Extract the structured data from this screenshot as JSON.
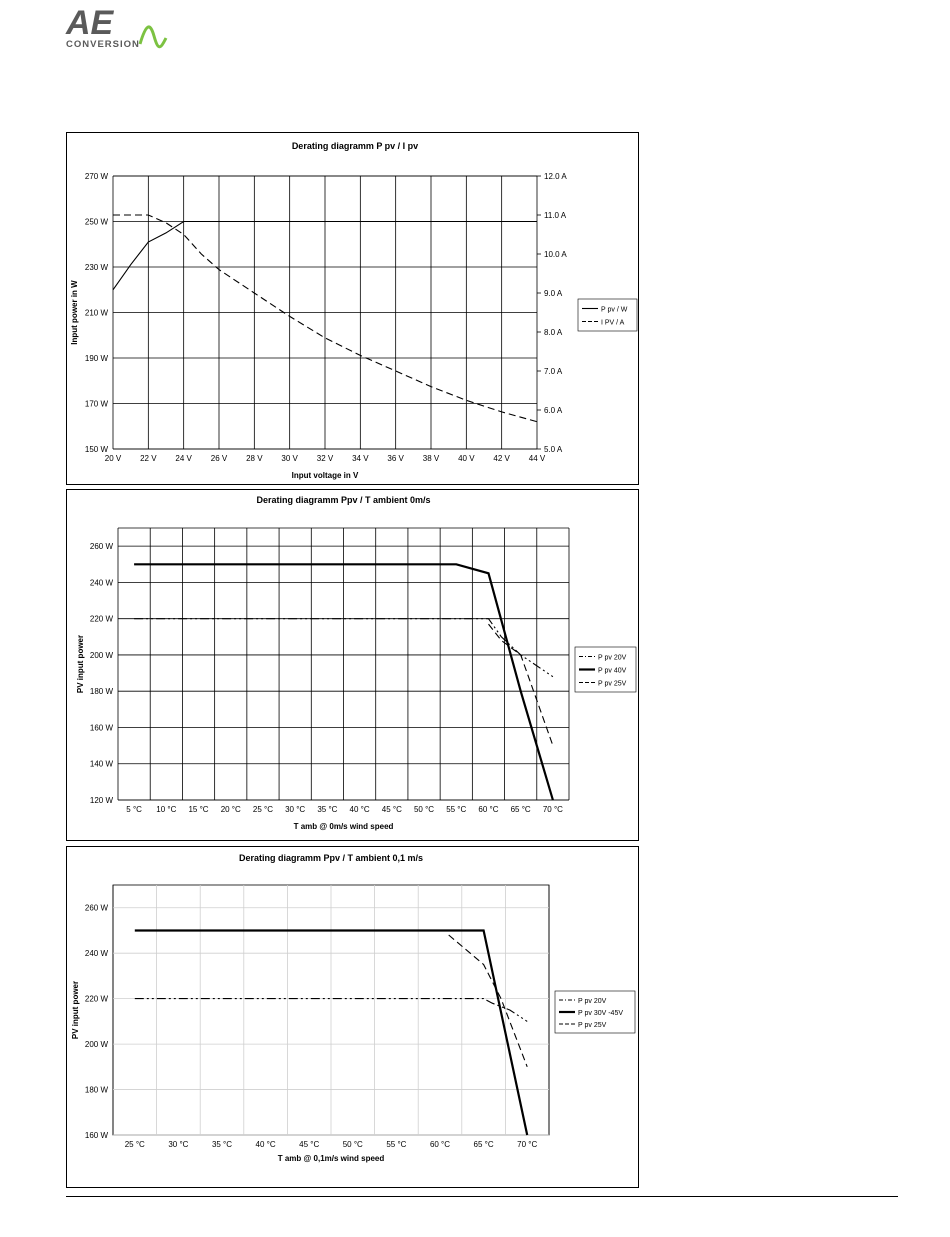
{
  "header": {
    "logo_letters": "AE",
    "logo_subtitle": "Conversion",
    "logo_colors": {
      "text": "#5a5a5a",
      "wave": "#7cc242"
    }
  },
  "chart_data": [
    {
      "type": "line",
      "title": "Derating diagramm P pv / I pv",
      "xlabel": "Input voltage in V",
      "ylabel": "Input power in W",
      "ylabel_right": "",
      "x_ticks": [
        "20 V",
        "22 V",
        "24 V",
        "26 V",
        "28 V",
        "30 V",
        "32 V",
        "34 V",
        "36 V",
        "38 V",
        "40 V",
        "42 V",
        "44 V"
      ],
      "xlim": [
        20,
        44
      ],
      "y_ticks": [
        "150 W",
        "170 W",
        "190 W",
        "210 W",
        "230 W",
        "250 W",
        "270 W"
      ],
      "ylim": [
        150,
        270
      ],
      "y2_ticks": [
        "5.0 A",
        "6.0 A",
        "7.0 A",
        "8.0 A",
        "9.0 A",
        "10.0 A",
        "11.0 A",
        "12.0 A"
      ],
      "y2lim": [
        5,
        12
      ],
      "grid": true,
      "legend_position": "right",
      "series": [
        {
          "name": "P pv / W",
          "axis": "left",
          "style": "solid",
          "x": [
            20,
            21,
            22,
            23,
            24,
            25,
            26,
            28,
            30,
            32,
            34,
            36,
            38,
            40,
            42,
            44
          ],
          "y": [
            220,
            231,
            241,
            245,
            250,
            250,
            250,
            250,
            250,
            250,
            250,
            250,
            250,
            250,
            250,
            250
          ]
        },
        {
          "name": "I PV / A",
          "axis": "right",
          "style": "dashed",
          "x": [
            20,
            21,
            22,
            23,
            24,
            25,
            26,
            28,
            30,
            32,
            34,
            36,
            38,
            40,
            42,
            44
          ],
          "y": [
            11.0,
            11.0,
            11.0,
            10.8,
            10.5,
            10.0,
            9.6,
            9.0,
            8.4,
            7.85,
            7.4,
            7.0,
            6.6,
            6.25,
            5.95,
            5.7
          ]
        }
      ]
    },
    {
      "type": "line",
      "title": "Derating diagramm Ppv / T ambient 0m/s",
      "xlabel": "T amb  @  0m/s wind speed",
      "ylabel": "PV input power",
      "x_ticks": [
        "5 °C",
        "10 °C",
        "15 °C",
        "20 °C",
        "25 °C",
        "30 °C",
        "35 °C",
        "40 °C",
        "45 °C",
        "50 °C",
        "55 °C",
        "60 °C",
        "65 °C",
        "70 °C"
      ],
      "xlim": [
        2.5,
        72.5
      ],
      "y_ticks": [
        "120 W",
        "140 W",
        "160 W",
        "180 W",
        "200 W",
        "220 W",
        "240 W",
        "260 W"
      ],
      "ylim": [
        120,
        270
      ],
      "grid": true,
      "legend_position": "right",
      "series": [
        {
          "name": "P pv 20V",
          "style": "dashdotdot",
          "x": [
            5,
            60,
            62,
            65,
            70
          ],
          "y": [
            220,
            220,
            210,
            200,
            188
          ]
        },
        {
          "name": "P pv 40V",
          "style": "thick",
          "x": [
            5,
            55,
            60,
            65,
            70
          ],
          "y": [
            250,
            250,
            245,
            180,
            120
          ]
        },
        {
          "name": "P pv 25V",
          "style": "dashed",
          "x": [
            60,
            62,
            65,
            70
          ],
          "y": [
            217,
            208,
            200,
            150
          ]
        }
      ]
    },
    {
      "type": "line",
      "title": "Derating diagramm Ppv / T ambient 0,1 m/s",
      "xlabel": "T amb  @  0,1m/s wind speed",
      "ylabel": "PV input power",
      "x_ticks": [
        "25 °C",
        "30 °C",
        "35 °C",
        "40 °C",
        "45 °C",
        "50 °C",
        "55 °C",
        "60 °C",
        "65 °C",
        "70 °C"
      ],
      "xlim": [
        22.5,
        72.5
      ],
      "y_ticks": [
        "160 W",
        "180 W",
        "200 W",
        "220 W",
        "240 W",
        "260 W"
      ],
      "ylim": [
        160,
        270
      ],
      "grid": true,
      "legend_position": "right",
      "series": [
        {
          "name": "P pv 20V",
          "style": "dashdotdot",
          "x": [
            25,
            65,
            66,
            68,
            70
          ],
          "y": [
            220,
            220,
            218,
            215,
            210
          ]
        },
        {
          "name": "P pv 30V -45V",
          "style": "thick",
          "x": [
            25,
            65,
            70
          ],
          "y": [
            250,
            250,
            160
          ]
        },
        {
          "name": "P pv 25V",
          "style": "dashed",
          "x": [
            61,
            65,
            67,
            70
          ],
          "y": [
            248,
            235,
            220,
            190
          ]
        }
      ]
    }
  ]
}
